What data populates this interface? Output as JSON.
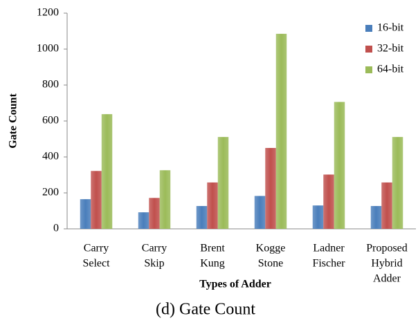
{
  "chart_data": {
    "type": "bar",
    "title": "(d) Gate Count",
    "x_label": "Types of Adder",
    "y_label": "Gate Count",
    "categories": [
      [
        "Carry",
        "Select"
      ],
      [
        "Carry",
        "Skip"
      ],
      [
        "Brent",
        "Kung"
      ],
      [
        "Kogge",
        "Stone"
      ],
      [
        "Ladner",
        "Fischer"
      ],
      [
        "Proposed",
        "Hybrid",
        "Adder"
      ]
    ],
    "series": [
      {
        "name": "16-bit",
        "color": "#4a7ebb",
        "values": [
          165,
          92,
          127,
          183,
          130,
          127
        ]
      },
      {
        "name": "32-bit",
        "color": "#c0504d",
        "values": [
          322,
          172,
          258,
          450,
          302,
          258
        ]
      },
      {
        "name": "64-bit",
        "color": "#9bbb59",
        "values": [
          638,
          326,
          511,
          1085,
          706,
          511
        ]
      }
    ],
    "ylim": [
      0,
      1200
    ],
    "yticks": [
      0,
      200,
      400,
      600,
      800,
      1000,
      1200
    ],
    "grid": false,
    "legend": "top-right"
  }
}
